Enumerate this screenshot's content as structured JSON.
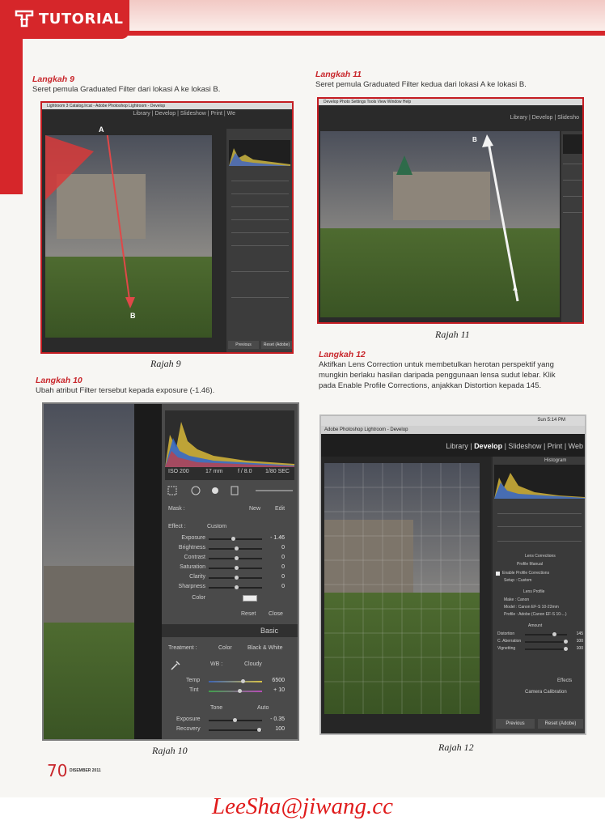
{
  "header": {
    "label": "TUTORIAL"
  },
  "steps": {
    "s9": {
      "title": "Langkah 9",
      "text": "Seret pemula Graduated Filter dari lokasi A ke lokasi B.",
      "caption": "Rajah 9"
    },
    "s10": {
      "title": "Langkah 10",
      "text": "Ubah atribut Filter tersebut kepada exposure (-1.46).",
      "caption": "Rajah 10"
    },
    "s11": {
      "title": "Langkah 11",
      "text": "Seret pemula Graduated Filter kedua dari lokasi A ke lokasi B.",
      "caption": "Rajah 11"
    },
    "s12": {
      "title": "Langkah 12",
      "text": "Aktifkan Lens Correction untuk membetulkan herotan perspektif yang mungkin berlaku hasilan daripada penggunaan lensa sudut lebar. Klik pada Enable Profile Corrections, anjakkan Distortion kepada 145.",
      "caption": "Rajah 12"
    }
  },
  "shot9": {
    "modules": "Library  |  Develop  |  Slideshow  |  Print  |  We",
    "marker_a": "A",
    "marker_b": "B",
    "titlebar": "Lightroom 3 Catalog.lrcat - Adobe Photoshop Lightroom - Develop",
    "btn_prev": "Previous",
    "btn_reset": "Reset (Adobe)"
  },
  "shot10": {
    "iso": "ISO 200",
    "focal": "17 mm",
    "fstop": "f / 8.0",
    "shutter": "1/80 SEC",
    "mask": "Mask :",
    "new": "New",
    "edit": "Edit",
    "effect": "Effect :",
    "effect_value": "Custom",
    "sliders": [
      {
        "label": "Exposure",
        "value": "- 1.46"
      },
      {
        "label": "Brightness",
        "value": "0"
      },
      {
        "label": "Contrast",
        "value": "0"
      },
      {
        "label": "Saturation",
        "value": "0"
      },
      {
        "label": "Clarity",
        "value": "0"
      },
      {
        "label": "Sharpness",
        "value": "0"
      }
    ],
    "color": "Color",
    "reset": "Reset",
    "close": "Close",
    "basic": "Basic",
    "treatment": "Treatment :",
    "color_opt": "Color",
    "bw_opt": "Black & White",
    "wb": "WB :",
    "wb_value": "Cloudy",
    "temp": "Temp",
    "temp_value": "6500",
    "tint": "Tint",
    "tint_value": "+ 10",
    "tone": "Tone",
    "auto": "Auto",
    "exposure2": "Exposure",
    "exposure2_value": "- 0.35",
    "recovery": "Recovery",
    "recovery_value": "100"
  },
  "shot11": {
    "modules": "Library  |  Develop  |  Slidesho",
    "marker_a": "A",
    "marker_b": "B",
    "menu": "Develop  Photo  Settings  Tools  View  Window  Help"
  },
  "shot12": {
    "titlebar": "Adobe Photoshop Lightroom - Develop",
    "clock": "Sun 5:14 PM",
    "modules": [
      "Library",
      "Develop",
      "Slideshow",
      "Print",
      "Web"
    ],
    "histogram": "Histogram",
    "lens": "Lens Corrections",
    "tabs": "Profile   Manual",
    "enable": "Enable Profile Corrections",
    "setup": "Setup : Custom",
    "lens_profile": "Lens Profile",
    "make": "Make : Canon",
    "model": "Model : Canon EF-S 10-22mm",
    "profile": "Profile : Adobe (Canon EF-S 10-...)",
    "amount": "Amount",
    "distortion": "Distortion",
    "distortion_value": "145",
    "ca": "C. Aberration",
    "ca_value": "100",
    "vignetting": "Vignetting",
    "vignetting_value": "100",
    "effects": "Effects",
    "calibration": "Camera Calibration",
    "btn_prev": "Previous",
    "btn_reset": "Reset (Adobe)"
  },
  "footer": {
    "page": "70",
    "issue": "DISEMBER 2011"
  },
  "watermark": "LeeSha@jiwang.cc"
}
